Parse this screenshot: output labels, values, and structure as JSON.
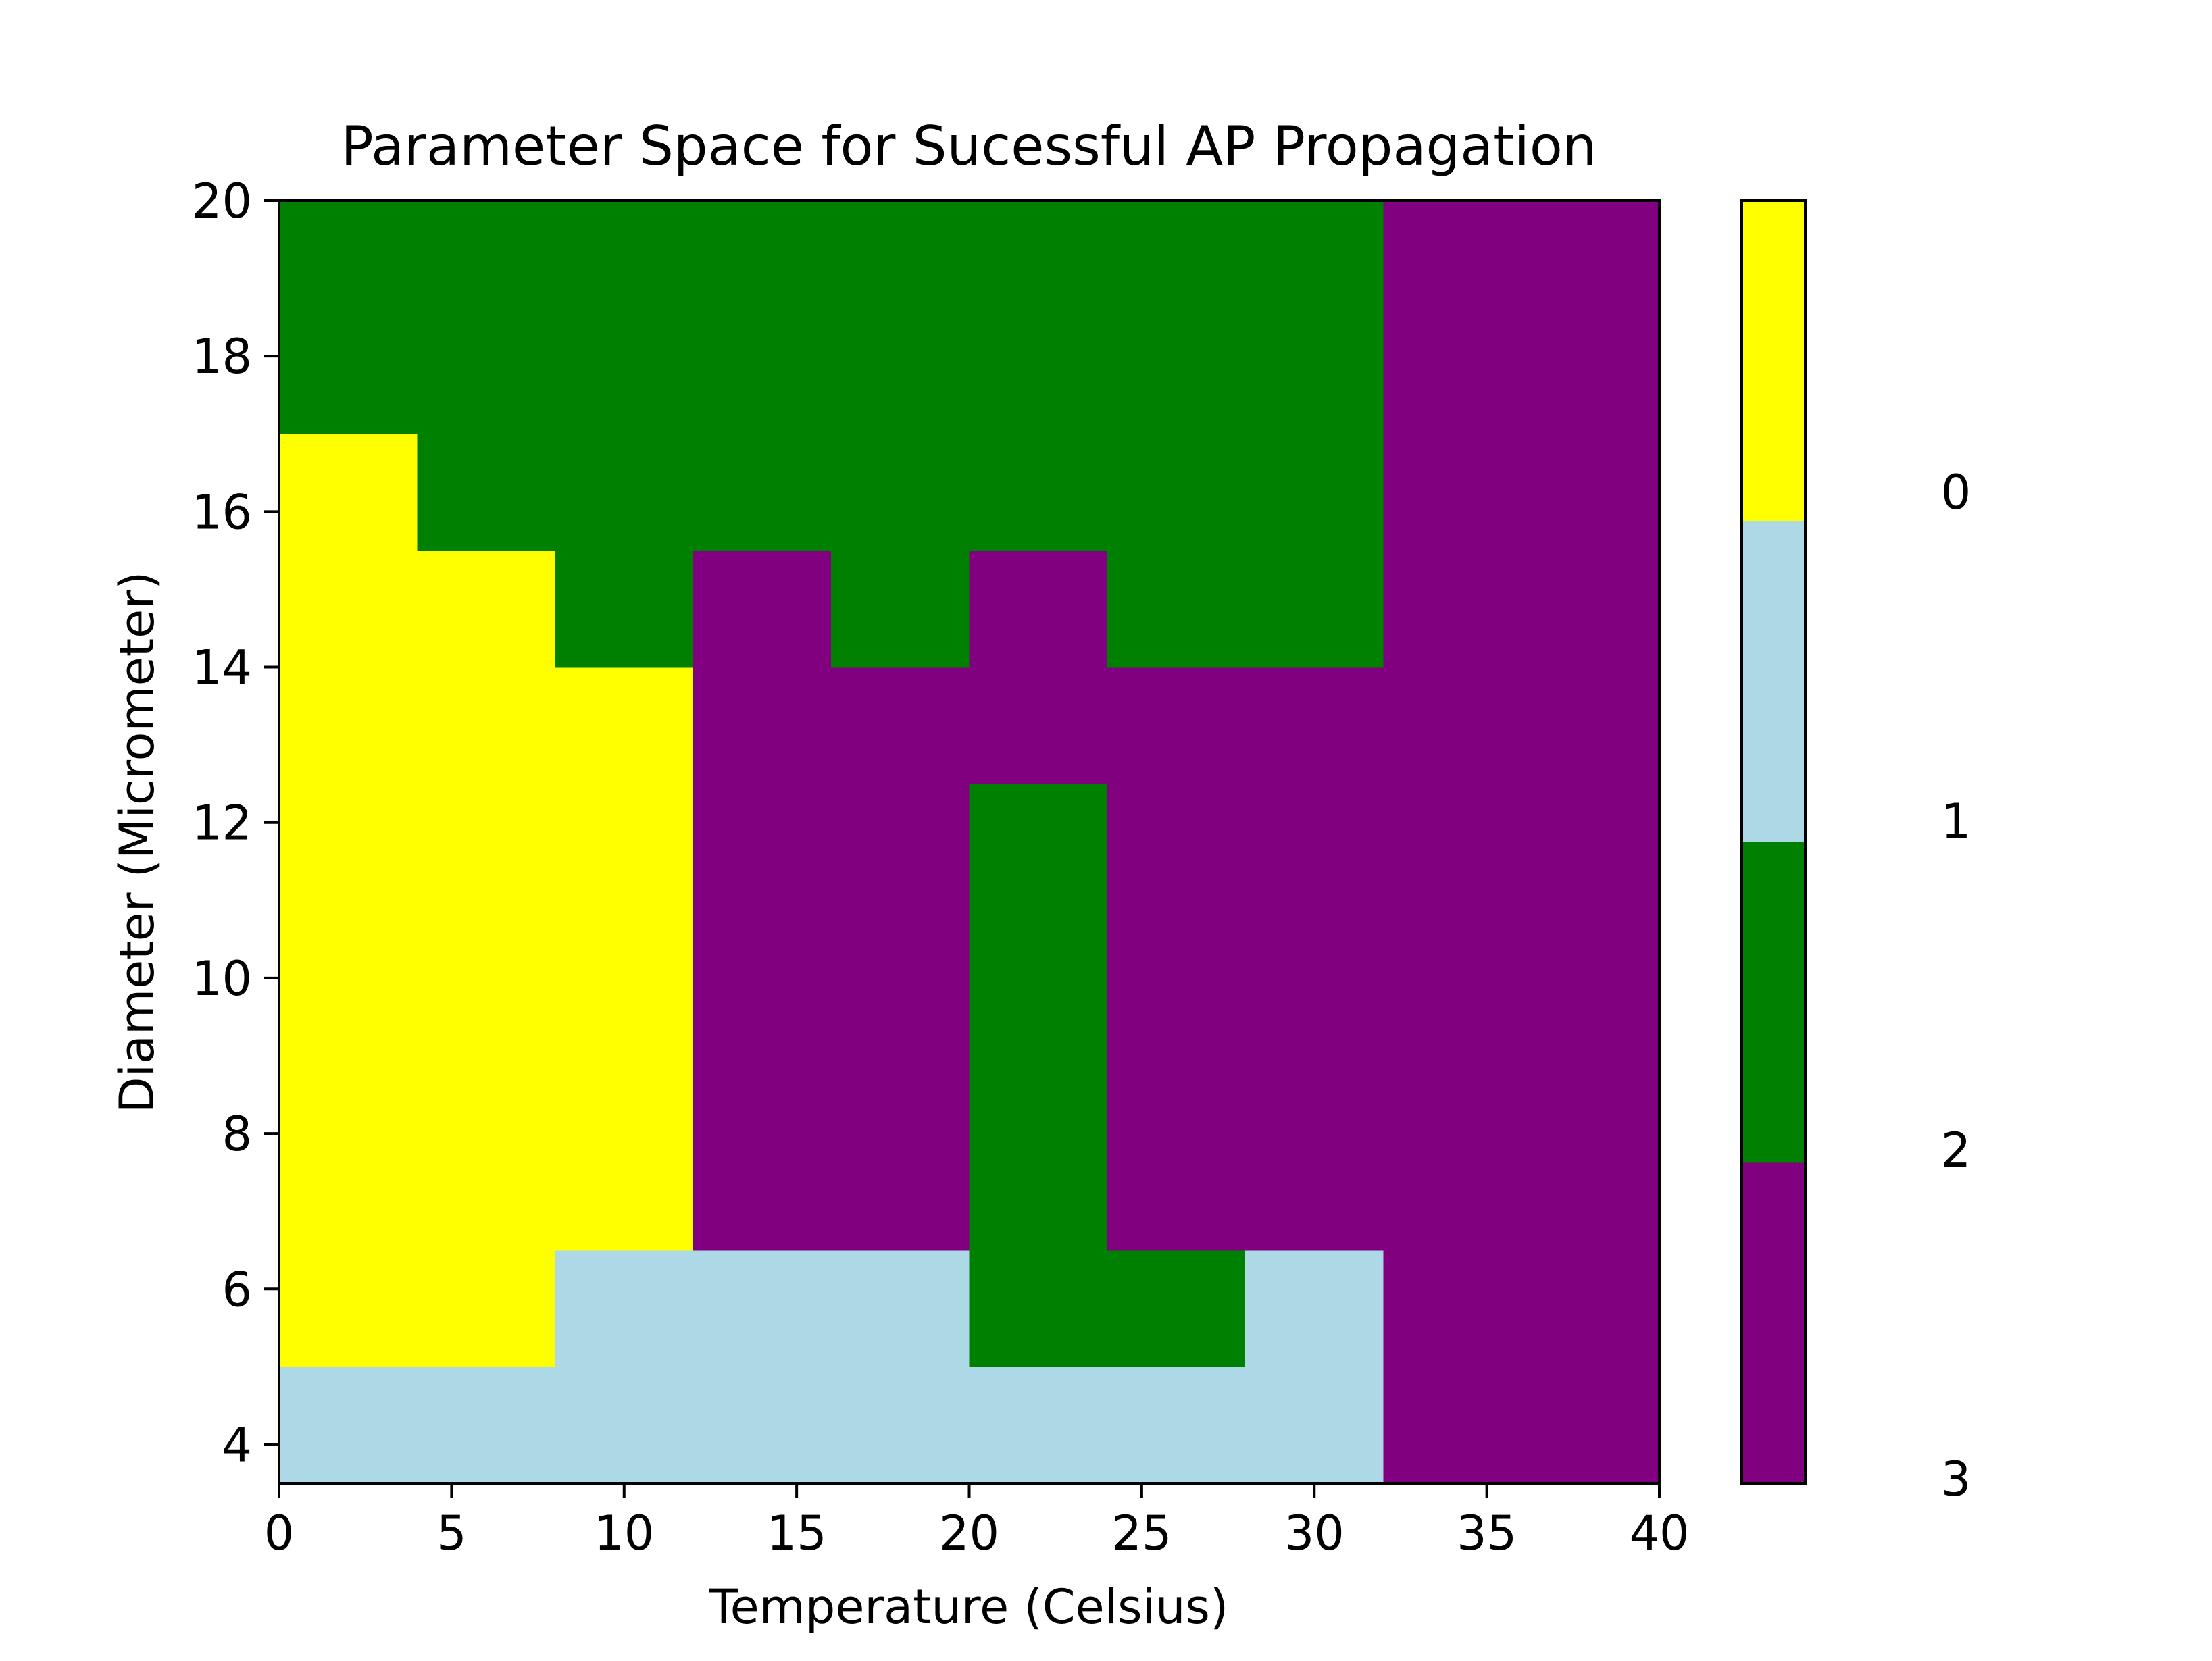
{
  "chart_data": {
    "type": "heatmap",
    "title": "Parameter Space for Sucessful AP Propagation",
    "xlabel": "Temperature (Celsius)",
    "ylabel": "Diameter (Micrometer)",
    "xlim": [
      0,
      40
    ],
    "ylim": [
      3.5,
      20
    ],
    "x_edges": [
      0,
      4,
      8,
      12,
      16,
      20,
      24,
      28,
      32,
      36,
      40
    ],
    "y_edges": [
      3.5,
      5,
      6.5,
      8,
      9.5,
      11,
      12.5,
      14,
      15.5,
      17,
      18.5,
      20
    ],
    "xticks": [
      0,
      5,
      10,
      15,
      20,
      25,
      30,
      35,
      40
    ],
    "yticks": [
      4,
      6,
      8,
      10,
      12,
      14,
      16,
      18,
      20
    ],
    "rows_bottom_to_top": [
      [
        1,
        1,
        1,
        1,
        1,
        1,
        1,
        1,
        3,
        3
      ],
      [
        0,
        0,
        1,
        1,
        1,
        2,
        2,
        1,
        3,
        3
      ],
      [
        0,
        0,
        0,
        3,
        3,
        2,
        3,
        3,
        3,
        3
      ],
      [
        0,
        0,
        0,
        3,
        3,
        2,
        3,
        3,
        3,
        3
      ],
      [
        0,
        0,
        0,
        3,
        3,
        2,
        3,
        3,
        3,
        3
      ],
      [
        0,
        0,
        0,
        3,
        3,
        2,
        3,
        3,
        3,
        3
      ],
      [
        0,
        0,
        0,
        3,
        3,
        3,
        3,
        3,
        3,
        3
      ],
      [
        0,
        0,
        2,
        3,
        2,
        3,
        2,
        2,
        3,
        3
      ],
      [
        0,
        2,
        2,
        2,
        2,
        2,
        2,
        2,
        3,
        3
      ],
      [
        2,
        2,
        2,
        2,
        2,
        2,
        2,
        2,
        3,
        3
      ],
      [
        2,
        2,
        2,
        2,
        2,
        2,
        2,
        2,
        3,
        3
      ]
    ],
    "colormap": [
      {
        "value": 0,
        "label": "0",
        "color": "#ffff00"
      },
      {
        "value": 1,
        "label": "1",
        "color": "#add8e6"
      },
      {
        "value": 2,
        "label": "2",
        "color": "#008000"
      },
      {
        "value": 3,
        "label": "3",
        "color": "#800080"
      }
    ],
    "colorbar": {
      "ticks": [
        "0",
        "1",
        "2",
        "3"
      ],
      "placement": "right"
    },
    "grid": false
  }
}
